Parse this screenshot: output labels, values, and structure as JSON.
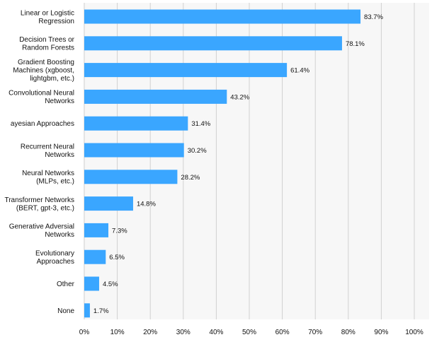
{
  "chart_data": {
    "type": "bar",
    "orientation": "horizontal",
    "categories": [
      [
        "Linear or Logistic",
        "Regression"
      ],
      [
        "Decision Trees or",
        "Random Forests"
      ],
      [
        "Gradient Boosting",
        "Machines (xgboost,",
        "lightgbm, etc.)"
      ],
      [
        "Convolutional Neural",
        "Networks"
      ],
      [
        "ayesian Approaches"
      ],
      [
        "Recurrent Neural",
        "Networks"
      ],
      [
        "Neural Networks",
        "(MLPs, etc.)"
      ],
      [
        "Transformer Networks",
        "(BERT, gpt-3, etc.)"
      ],
      [
        "Generative Adversial",
        "Networks"
      ],
      [
        "Evolutionary",
        "Approaches"
      ],
      [
        "Other"
      ],
      [
        "None"
      ]
    ],
    "values": [
      83.7,
      78.1,
      61.4,
      43.2,
      31.4,
      30.2,
      28.2,
      14.8,
      7.3,
      6.5,
      4.5,
      1.7
    ],
    "value_labels": [
      "83.7%",
      "78.1%",
      "61.4%",
      "43.2%",
      "31.4%",
      "30.2%",
      "28.2%",
      "14.8%",
      "7.3%",
      "6.5%",
      "4.5%",
      "1.7%"
    ],
    "x_ticks": [
      0,
      10,
      20,
      30,
      40,
      50,
      60,
      70,
      80,
      90,
      100
    ],
    "x_tick_labels": [
      "0%",
      "10%",
      "20%",
      "30%",
      "40%",
      "50%",
      "60%",
      "70%",
      "80%",
      "90%",
      "100%"
    ],
    "xlim": [
      0,
      100
    ],
    "bar_color": "#3aa6ff",
    "grid": true,
    "legend": false,
    "title": "",
    "xlabel": "",
    "ylabel": ""
  }
}
